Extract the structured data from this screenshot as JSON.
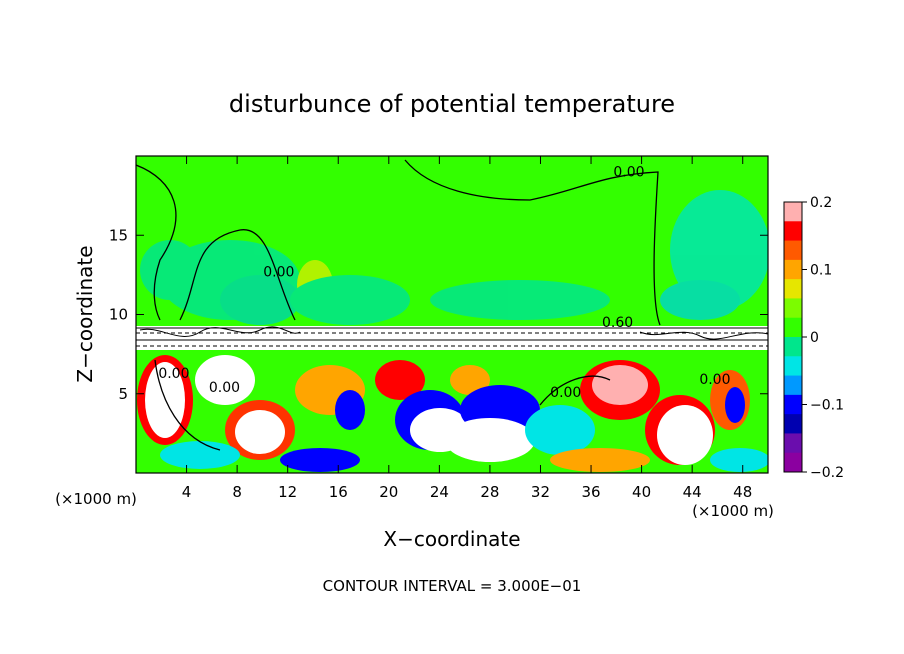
{
  "chart_data": {
    "type": "heatmap",
    "title": "disturbunce of potential temperature",
    "xlabel": "X−coordinate",
    "ylabel": "Z−coordinate",
    "x_unit_left": "(×1000 m)",
    "x_unit_right": "(×1000 m)",
    "footer": "CONTOUR INTERVAL = 3.000E−01",
    "xlim": [
      0,
      50
    ],
    "ylim": [
      0,
      20
    ],
    "x_ticks": [
      4,
      8,
      12,
      16,
      20,
      24,
      28,
      32,
      36,
      40,
      44,
      48
    ],
    "y_ticks": [
      5,
      10,
      15
    ],
    "contour_labels": [
      {
        "text": "0.00",
        "x": 39,
        "y": 18.7
      },
      {
        "text": "0.00",
        "x": 11.3,
        "y": 12.4
      },
      {
        "text": "0.60",
        "x": 38.1,
        "y": 9.2
      },
      {
        "text": "0.00",
        "x": 3.0,
        "y": 6.0
      },
      {
        "text": "0.00",
        "x": 7.0,
        "y": 5.1
      },
      {
        "text": "0.00",
        "x": 34.0,
        "y": 4.8
      },
      {
        "text": "0.00",
        "x": 45.8,
        "y": 5.6
      }
    ],
    "colorbar": {
      "min": -0.2,
      "max": 0.2,
      "ticks": [
        0.2,
        0.1,
        0,
        -0.1,
        -0.2
      ],
      "tick_labels": [
        "0.2",
        "0.1",
        "0",
        "−0.1",
        "−0.2"
      ],
      "colors": [
        "#ffb0b0",
        "#ff0000",
        "#ff5a00",
        "#ffa500",
        "#e6e600",
        "#7cfc00",
        "#33ff00",
        "#00e68c",
        "#00e5e5",
        "#0099ff",
        "#0000ff",
        "#0000b0",
        "#6a0dad",
        "#8b00a0"
      ]
    },
    "fields": {
      "upper_background": "#33ff00",
      "lower_background": "#33ff00"
    }
  }
}
